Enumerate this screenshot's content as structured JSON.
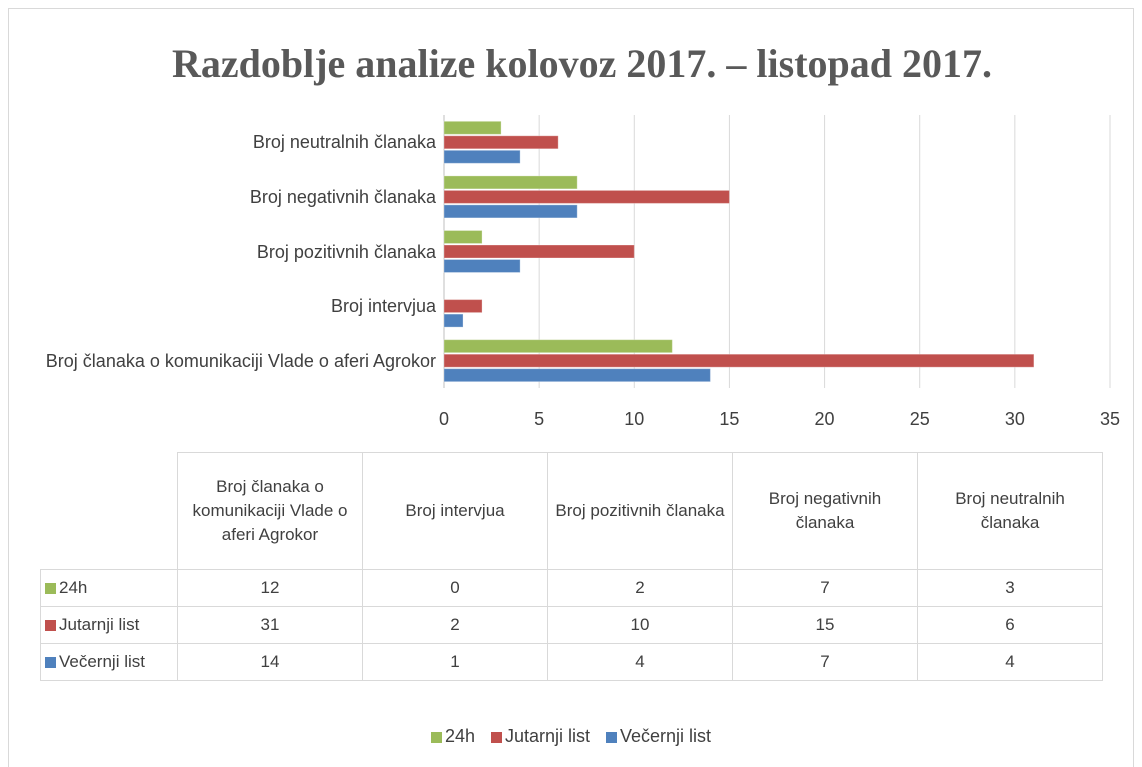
{
  "chart_data": {
    "type": "bar",
    "orientation": "horizontal",
    "title": "Razdoblje analize kolovoz 2017. – listopad 2017.",
    "categories": [
      "Broj članaka o komunikaciji Vlade o aferi Agrokor",
      "Broj intervjua",
      "Broj pozitivnih članaka",
      "Broj negativnih članaka",
      "Broj neutralnih članaka"
    ],
    "series": [
      {
        "name": "24h",
        "color": "#9bbb59",
        "values": [
          12,
          0,
          2,
          7,
          3
        ]
      },
      {
        "name": "Jutarnji list",
        "color": "#c0504d",
        "values": [
          31,
          2,
          10,
          15,
          6
        ]
      },
      {
        "name": "Večernji list",
        "color": "#4f81bd",
        "values": [
          14,
          1,
          4,
          7,
          4
        ]
      }
    ],
    "xlim": [
      0,
      35
    ],
    "xticks": [
      0,
      5,
      10,
      15,
      20,
      25,
      30,
      35
    ],
    "grid": true,
    "legend": "bottom",
    "data_table": true
  }
}
